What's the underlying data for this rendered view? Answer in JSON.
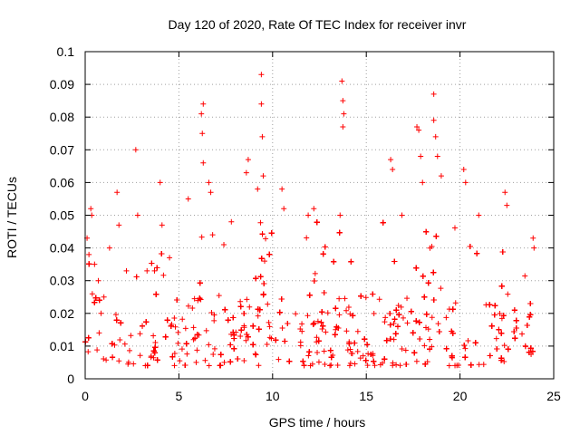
{
  "chart_data": {
    "type": "scatter",
    "title": "Day 120 of 2020, Rate Of TEC Index for receiver invr",
    "xlabel": "GPS time / hours",
    "ylabel": "ROTI / TECUs",
    "xlim": [
      0,
      25
    ],
    "ylim": [
      0,
      0.1
    ],
    "xticks": [
      "0",
      "5",
      "10",
      "15",
      "20",
      "25"
    ],
    "yticks": [
      "0",
      "0.01",
      "0.02",
      "0.03",
      "0.04",
      "0.05",
      "0.06",
      "0.07",
      "0.08",
      "0.09",
      "0.1"
    ],
    "grid": true,
    "marker": "+",
    "series": [
      {
        "color": "#ff0000",
        "points": [
          [
            0.1,
            0.043
          ],
          [
            0.2,
            0.038
          ],
          [
            0.3,
            0.052
          ],
          [
            0.35,
            0.05
          ],
          [
            0.5,
            0.035
          ],
          [
            0.7,
            0.03
          ],
          [
            1.0,
            0.025
          ],
          [
            1.3,
            0.04
          ],
          [
            1.7,
            0.057
          ],
          [
            1.8,
            0.047
          ],
          [
            2.2,
            0.033
          ],
          [
            2.7,
            0.07
          ],
          [
            2.8,
            0.05
          ],
          [
            3.3,
            0.033
          ],
          [
            3.7,
            0.033
          ],
          [
            4.0,
            0.06
          ],
          [
            4.1,
            0.047
          ],
          [
            4.5,
            0.037
          ],
          [
            5.5,
            0.055
          ],
          [
            6.2,
            0.081
          ],
          [
            6.3,
            0.084
          ],
          [
            6.25,
            0.075
          ],
          [
            6.3,
            0.066
          ],
          [
            6.6,
            0.06
          ],
          [
            6.7,
            0.057
          ],
          [
            6.8,
            0.044
          ],
          [
            7.4,
            0.041
          ],
          [
            7.8,
            0.048
          ],
          [
            8.6,
            0.063
          ],
          [
            8.7,
            0.067
          ],
          [
            9.2,
            0.058
          ],
          [
            9.4,
            0.093
          ],
          [
            9.4,
            0.084
          ],
          [
            9.45,
            0.074
          ],
          [
            9.5,
            0.062
          ],
          [
            10.5,
            0.058
          ],
          [
            10.6,
            0.052
          ],
          [
            11.9,
            0.05
          ],
          [
            12.2,
            0.052
          ],
          [
            13.7,
            0.091
          ],
          [
            13.75,
            0.085
          ],
          [
            13.8,
            0.081
          ],
          [
            13.75,
            0.077
          ],
          [
            13.6,
            0.05
          ],
          [
            16.3,
            0.067
          ],
          [
            16.4,
            0.064
          ],
          [
            16.9,
            0.05
          ],
          [
            17.7,
            0.077
          ],
          [
            17.8,
            0.076
          ],
          [
            17.9,
            0.068
          ],
          [
            18.0,
            0.06
          ],
          [
            18.6,
            0.087
          ],
          [
            18.6,
            0.079
          ],
          [
            18.7,
            0.074
          ],
          [
            18.8,
            0.068
          ],
          [
            19.0,
            0.062
          ],
          [
            20.2,
            0.064
          ],
          [
            20.3,
            0.06
          ],
          [
            21.0,
            0.05
          ],
          [
            22.4,
            0.057
          ],
          [
            22.5,
            0.053
          ],
          [
            23.9,
            0.043
          ],
          [
            23.95,
            0.04
          ]
        ]
      }
    ]
  }
}
